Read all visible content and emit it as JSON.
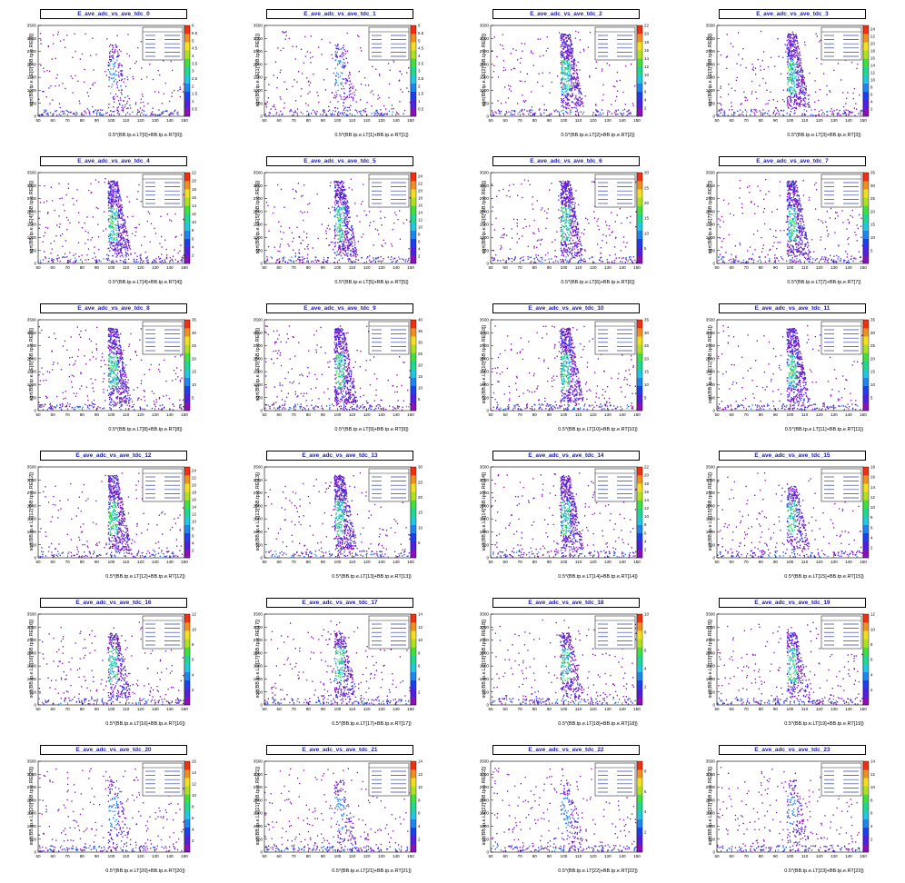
{
  "chart_data": [
    {
      "type": "heatmap",
      "title": "E_ave_adc_vs_ave_tdc_0",
      "xlabel": "0.5*(BB.tp.e.LT[0]+BB.tp.e.RT[0])",
      "ylabel": "sqrt(BB.tp.e.LE[0]*BB.tp.e.RE[0])",
      "xlim": [
        50,
        150
      ],
      "ylim": [
        0,
        3500
      ],
      "zmax": 6,
      "peak": "weak"
    },
    {
      "type": "heatmap",
      "title": "E_ave_adc_vs_ave_tdc_1",
      "xlabel": "0.5*(BB.tp.e.LT[1]+BB.tp.e.RT[1])",
      "ylabel": "sqrt(BB.tp.e.LE[1]*BB.tp.e.RE[1])",
      "xlim": [
        50,
        150
      ],
      "ylim": [
        0,
        3500
      ],
      "zmax": 6,
      "peak": "weak"
    },
    {
      "type": "heatmap",
      "title": "E_ave_adc_vs_ave_tdc_2",
      "xlabel": "0.5*(BB.tp.e.LT[2]+BB.tp.e.RT[2])",
      "ylabel": "sqrt(BB.tp.e.LE[2]*BB.tp.e.RE[2])",
      "xlim": [
        50,
        150
      ],
      "ylim": [
        0,
        3500
      ],
      "zmax": 22,
      "peak": "strong"
    },
    {
      "type": "heatmap",
      "title": "E_ave_adc_vs_ave_tdc_3",
      "xlabel": "0.5*(BB.tp.e.LT[3]+BB.tp.e.RT[3])",
      "ylabel": "sqrt(BB.tp.e.LE[3]*BB.tp.e.RE[3])",
      "xlim": [
        50,
        150
      ],
      "ylim": [
        0,
        3500
      ],
      "zmax": 25,
      "peak": "strong"
    },
    {
      "type": "heatmap",
      "title": "E_ave_adc_vs_ave_tdc_4",
      "xlabel": "0.5*(BB.tp.e.LT[4]+BB.tp.e.RT[4])",
      "ylabel": "sqrt(BB.tp.e.LE[4]*BB.tp.e.RE[4])",
      "xlim": [
        50,
        150
      ],
      "ylim": [
        0,
        3500
      ],
      "zmax": 22,
      "peak": "strong"
    },
    {
      "type": "heatmap",
      "title": "E_ave_adc_vs_ave_tdc_5",
      "xlabel": "0.5*(BB.tp.e.LT[5]+BB.tp.e.RT[5])",
      "ylabel": "sqrt(BB.tp.e.LE[5]*BB.tp.e.RE[5])",
      "xlim": [
        50,
        150
      ],
      "ylim": [
        0,
        3500
      ],
      "zmax": 25,
      "peak": "strong"
    },
    {
      "type": "heatmap",
      "title": "E_ave_adc_vs_ave_tdc_6",
      "xlabel": "0.5*(BB.tp.e.LT[6]+BB.tp.e.RT[6])",
      "ylabel": "sqrt(BB.tp.e.LE[6]*BB.tp.e.RE[6])",
      "xlim": [
        50,
        150
      ],
      "ylim": [
        0,
        3500
      ],
      "zmax": 30,
      "peak": "strong"
    },
    {
      "type": "heatmap",
      "title": "E_ave_adc_vs_ave_tdc_7",
      "xlabel": "0.5*(BB.tp.e.LT[7]+BB.tp.e.RT[7])",
      "ylabel": "sqrt(BB.tp.e.LE[7]*BB.tp.e.RE[7])",
      "xlim": [
        50,
        150
      ],
      "ylim": [
        0,
        3500
      ],
      "zmax": 35,
      "peak": "strong"
    },
    {
      "type": "heatmap",
      "title": "E_ave_adc_vs_ave_tdc_8",
      "xlabel": "0.5*(BB.tp.e.LT[8]+BB.tp.e.RT[8])",
      "ylabel": "sqrt(BB.tp.e.LE[8]*BB.tp.e.RE[8])",
      "xlim": [
        50,
        150
      ],
      "ylim": [
        0,
        3500
      ],
      "zmax": 35,
      "peak": "strong"
    },
    {
      "type": "heatmap",
      "title": "E_ave_adc_vs_ave_tdc_9",
      "xlabel": "0.5*(BB.tp.e.LT[9]+BB.tp.e.RT[9])",
      "ylabel": "sqrt(BB.tp.e.LE[9]*BB.tp.e.RE[9])",
      "xlim": [
        50,
        150
      ],
      "ylim": [
        0,
        3500
      ],
      "zmax": 40,
      "peak": "strong"
    },
    {
      "type": "heatmap",
      "title": "E_ave_adc_vs_ave_tdc_10",
      "xlabel": "0.5*(BB.tp.e.LT[10]+BB.tp.e.RT[10])",
      "ylabel": "sqrt(BB.tp.e.LE[10]*BB.tp.e.RE[10])",
      "xlim": [
        50,
        150
      ],
      "ylim": [
        0,
        3500
      ],
      "zmax": 35,
      "peak": "strong"
    },
    {
      "type": "heatmap",
      "title": "E_ave_adc_vs_ave_tdc_11",
      "xlabel": "0.5*(BB.tp.e.LT[11]+BB.tp.e.RT[11])",
      "ylabel": "sqrt(BB.tp.e.LE[11]*BB.tp.e.RE[11])",
      "xlim": [
        50,
        150
      ],
      "ylim": [
        0,
        3500
      ],
      "zmax": 35,
      "peak": "strong"
    },
    {
      "type": "heatmap",
      "title": "E_ave_adc_vs_ave_tdc_12",
      "xlabel": "0.5*(BB.tp.e.LT[12]+BB.tp.e.RT[12])",
      "ylabel": "sqrt(BB.tp.e.LE[12]*BB.tp.e.RE[12])",
      "xlim": [
        50,
        150
      ],
      "ylim": [
        0,
        3500
      ],
      "zmax": 25,
      "peak": "strong"
    },
    {
      "type": "heatmap",
      "title": "E_ave_adc_vs_ave_tdc_13",
      "xlabel": "0.5*(BB.tp.e.LT[13]+BB.tp.e.RT[13])",
      "ylabel": "sqrt(BB.tp.e.LE[13]*BB.tp.e.RE[13])",
      "xlim": [
        50,
        150
      ],
      "ylim": [
        0,
        3500
      ],
      "zmax": 30,
      "peak": "strong"
    },
    {
      "type": "heatmap",
      "title": "E_ave_adc_vs_ave_tdc_14",
      "xlabel": "0.5*(BB.tp.e.LT[14]+BB.tp.e.RT[14])",
      "ylabel": "sqrt(BB.tp.e.LE[14]*BB.tp.e.RE[14])",
      "xlim": [
        50,
        150
      ],
      "ylim": [
        0,
        3500
      ],
      "zmax": 22,
      "peak": "strong"
    },
    {
      "type": "heatmap",
      "title": "E_ave_adc_vs_ave_tdc_15",
      "xlabel": "0.5*(BB.tp.e.LT[15]+BB.tp.e.RT[15])",
      "ylabel": "sqrt(BB.tp.e.LE[15]*BB.tp.e.RE[15])",
      "xlim": [
        50,
        150
      ],
      "ylim": [
        0,
        3500
      ],
      "zmax": 18,
      "peak": "medium"
    },
    {
      "type": "heatmap",
      "title": "E_ave_adc_vs_ave_tdc_16",
      "xlabel": "0.5*(BB.tp.e.LT[16]+BB.tp.e.RT[16])",
      "ylabel": "sqrt(BB.tp.e.LE[16]*BB.tp.e.RE[16])",
      "xlim": [
        50,
        150
      ],
      "ylim": [
        0,
        3500
      ],
      "zmax": 12,
      "peak": "medium"
    },
    {
      "type": "heatmap",
      "title": "E_ave_adc_vs_ave_tdc_17",
      "xlabel": "0.5*(BB.tp.e.LT[17]+BB.tp.e.RT[17])",
      "ylabel": "sqrt(BB.tp.e.LE[17]*BB.tp.e.RE[17])",
      "xlim": [
        50,
        150
      ],
      "ylim": [
        0,
        3500
      ],
      "zmax": 14,
      "peak": "medium"
    },
    {
      "type": "heatmap",
      "title": "E_ave_adc_vs_ave_tdc_18",
      "xlabel": "0.5*(BB.tp.e.LT[18]+BB.tp.e.RT[18])",
      "ylabel": "sqrt(BB.tp.e.LE[18]*BB.tp.e.RE[18])",
      "xlim": [
        50,
        150
      ],
      "ylim": [
        0,
        3500
      ],
      "zmax": 10,
      "peak": "medium"
    },
    {
      "type": "heatmap",
      "title": "E_ave_adc_vs_ave_tdc_19",
      "xlabel": "0.5*(BB.tp.e.LT[19]+BB.tp.e.RT[19])",
      "ylabel": "sqrt(BB.tp.e.LE[19]*BB.tp.e.RE[19])",
      "xlim": [
        50,
        150
      ],
      "ylim": [
        0,
        3500
      ],
      "zmax": 12,
      "peak": "medium"
    },
    {
      "type": "heatmap",
      "title": "E_ave_adc_vs_ave_tdc_20",
      "xlabel": "0.5*(BB.tp.e.LT[20]+BB.tp.e.RT[20])",
      "ylabel": "sqrt(BB.tp.e.LE[20]*BB.tp.e.RE[20])",
      "xlim": [
        50,
        150
      ],
      "ylim": [
        0,
        3500
      ],
      "zmax": 16,
      "peak": "weak"
    },
    {
      "type": "heatmap",
      "title": "E_ave_adc_vs_ave_tdc_21",
      "xlabel": "0.5*(BB.tp.e.LT[21]+BB.tp.e.RT[21])",
      "ylabel": "sqrt(BB.tp.e.LE[21]*BB.tp.e.RE[21])",
      "xlim": [
        50,
        150
      ],
      "ylim": [
        0,
        3500
      ],
      "zmax": 14,
      "peak": "weak"
    },
    {
      "type": "heatmap",
      "title": "E_ave_adc_vs_ave_tdc_22",
      "xlabel": "0.5*(BB.tp.e.LT[22]+BB.tp.e.RT[22])",
      "ylabel": "sqrt(BB.tp.e.LE[22]*BB.tp.e.RE[22])",
      "xlim": [
        50,
        150
      ],
      "ylim": [
        0,
        3500
      ],
      "zmax": 9,
      "peak": "weak"
    },
    {
      "type": "heatmap",
      "title": "E_ave_adc_vs_ave_tdc_23",
      "xlabel": "0.5*(BB.tp.e.LT[23]+BB.tp.e.RT[23])",
      "ylabel": "sqrt(BB.tp.e.LE[23]*BB.tp.e.RE[23])",
      "xlim": [
        50,
        150
      ],
      "ylim": [
        0,
        3500
      ],
      "zmax": 14,
      "peak": "weak"
    }
  ],
  "axes": {
    "xticks": [
      50,
      60,
      70,
      80,
      90,
      100,
      110,
      120,
      130,
      140,
      150
    ],
    "yticks": [
      0,
      500,
      1000,
      1500,
      2000,
      2500,
      3000,
      3500
    ]
  },
  "palette": [
    "#8a10b8",
    "#5020e0",
    "#1f3ef0",
    "#1f86f0",
    "#20c8e0",
    "#20d890",
    "#40e040",
    "#b0e020",
    "#f0e020",
    "#f09020",
    "#f03010"
  ]
}
